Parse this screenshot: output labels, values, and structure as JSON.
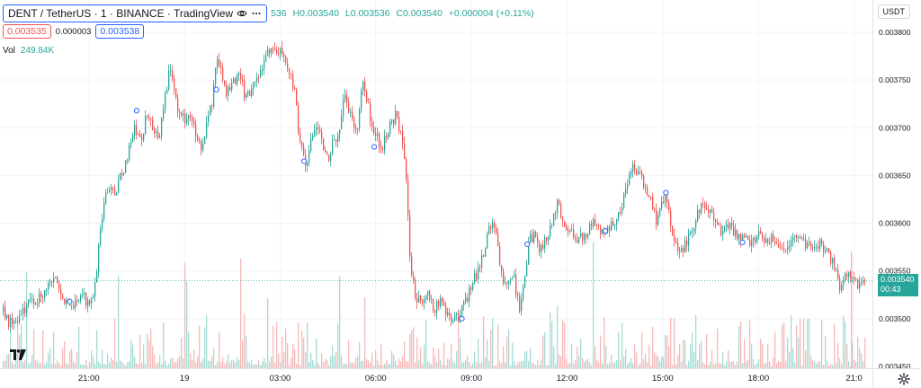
{
  "legend": {
    "symbol": "DENT / TetherUS · 1 · BINANCE · TradingView",
    "ohlc_prefix": "536",
    "open": "H0.003540",
    "low": "L0.003536",
    "close": "C0.003540",
    "change": "+0.000004 (+0.11%)",
    "bid": "0.003535",
    "spread": "0.000003",
    "ask": "0.003538",
    "vol_label": "Vol",
    "vol_value": "249.84K",
    "eye_icon": "eye-icon",
    "close_icon": "close-icon"
  },
  "currency": "USDT",
  "last_price": {
    "price": "0.003540",
    "countdown": "00:43"
  },
  "colors": {
    "up": "#26a69a",
    "down": "#ef5350",
    "volume_up": "#a6dcd5",
    "volume_down": "#f6b9b8",
    "grid": "#f0f3fa",
    "text": "#131722",
    "accent": "#2962ff"
  },
  "chart_data": {
    "type": "candlestick",
    "symbol": "DENT / TetherUS",
    "interval": "1",
    "exchange": "BINANCE",
    "y_ticks": [
      0.0038,
      0.00375,
      0.0037,
      0.00365,
      0.0036,
      0.00355,
      0.0035,
      0.00345
    ],
    "y_tick_labels": [
      "0.003800",
      "0.003750",
      "0.003700",
      "0.003650",
      "0.003600",
      "0.003550",
      "0.003500",
      "0.003450"
    ],
    "ylim": [
      0.00345,
      0.00381
    ],
    "x_ticks": [
      "21:00",
      "19",
      "03:00",
      "06:00",
      "09:00",
      "12:00",
      "15:00",
      "18:00",
      "21:0"
    ],
    "x_tick_hours": [
      3.0,
      6.0,
      9.0,
      12.0,
      15.0,
      18.0,
      21.0,
      24.0,
      27.0
    ],
    "x_range_hours": [
      0.3,
      27.35
    ],
    "price_path": [
      [
        0.3,
        0.003507
      ],
      [
        0.5,
        0.003495
      ],
      [
        0.8,
        0.003502
      ],
      [
        1.0,
        0.003512
      ],
      [
        1.3,
        0.003518
      ],
      [
        1.6,
        0.003528
      ],
      [
        1.9,
        0.003542
      ],
      [
        2.1,
        0.003525
      ],
      [
        2.4,
        0.003514
      ],
      [
        2.7,
        0.003522
      ],
      [
        2.8,
        0.003528
      ],
      [
        3.0,
        0.00351
      ],
      [
        3.2,
        0.003535
      ],
      [
        3.35,
        0.0036
      ],
      [
        3.5,
        0.003625
      ],
      [
        3.6,
        0.00364
      ],
      [
        3.8,
        0.003633
      ],
      [
        4.0,
        0.00365
      ],
      [
        4.2,
        0.003672
      ],
      [
        4.4,
        0.0037
      ],
      [
        4.6,
        0.003685
      ],
      [
        4.8,
        0.003712
      ],
      [
        5.0,
        0.0037
      ],
      [
        5.2,
        0.00369
      ],
      [
        5.35,
        0.003728
      ],
      [
        5.5,
        0.00376
      ],
      [
        5.6,
        0.003748
      ],
      [
        5.75,
        0.003722
      ],
      [
        6.0,
        0.003705
      ],
      [
        6.2,
        0.00371
      ],
      [
        6.4,
        0.003684
      ],
      [
        6.5,
        0.003676
      ],
      [
        6.7,
        0.00371
      ],
      [
        6.85,
        0.003728
      ],
      [
        7.0,
        0.00377
      ],
      [
        7.15,
        0.003755
      ],
      [
        7.3,
        0.003735
      ],
      [
        7.5,
        0.003745
      ],
      [
        7.7,
        0.00376
      ],
      [
        7.9,
        0.00373
      ],
      [
        8.1,
        0.003742
      ],
      [
        8.3,
        0.003752
      ],
      [
        8.5,
        0.00377
      ],
      [
        8.7,
        0.003788
      ],
      [
        8.85,
        0.00378
      ],
      [
        9.0,
        0.003784
      ],
      [
        9.2,
        0.003768
      ],
      [
        9.45,
        0.003735
      ],
      [
        9.55,
        0.0037
      ],
      [
        9.7,
        0.00367
      ],
      [
        9.8,
        0.003652
      ],
      [
        9.9,
        0.00368
      ],
      [
        10.1,
        0.003708
      ],
      [
        10.3,
        0.003685
      ],
      [
        10.5,
        0.003662
      ],
      [
        10.6,
        0.00368
      ],
      [
        10.8,
        0.003695
      ],
      [
        11.0,
        0.00373
      ],
      [
        11.2,
        0.003715
      ],
      [
        11.4,
        0.00369
      ],
      [
        11.5,
        0.003728
      ],
      [
        11.6,
        0.00375
      ],
      [
        11.8,
        0.003712
      ],
      [
        12.0,
        0.00369
      ],
      [
        12.2,
        0.00368
      ],
      [
        12.4,
        0.0037
      ],
      [
        12.6,
        0.003714
      ],
      [
        12.8,
        0.00369
      ],
      [
        12.9,
        0.00366
      ],
      [
        13.0,
        0.00361
      ],
      [
        13.05,
        0.00356
      ],
      [
        13.2,
        0.003525
      ],
      [
        13.4,
        0.003518
      ],
      [
        13.6,
        0.003528
      ],
      [
        13.8,
        0.00351
      ],
      [
        14.0,
        0.00352
      ],
      [
        14.2,
        0.003508
      ],
      [
        14.4,
        0.003498
      ],
      [
        14.6,
        0.003502
      ],
      [
        14.8,
        0.00352
      ],
      [
        15.0,
        0.003535
      ],
      [
        15.2,
        0.003552
      ],
      [
        15.4,
        0.003575
      ],
      [
        15.6,
        0.003602
      ],
      [
        15.75,
        0.003592
      ],
      [
        15.95,
        0.00354
      ],
      [
        16.1,
        0.003535
      ],
      [
        16.3,
        0.003545
      ],
      [
        16.5,
        0.003505
      ],
      [
        16.65,
        0.00354
      ],
      [
        16.8,
        0.003582
      ],
      [
        17.0,
        0.00359
      ],
      [
        17.15,
        0.00357
      ],
      [
        17.3,
        0.003585
      ],
      [
        17.5,
        0.003598
      ],
      [
        17.7,
        0.003622
      ],
      [
        17.9,
        0.003598
      ],
      [
        18.1,
        0.00359
      ],
      [
        18.3,
        0.00358
      ],
      [
        18.5,
        0.003588
      ],
      [
        18.7,
        0.003595
      ],
      [
        18.9,
        0.003602
      ],
      [
        19.1,
        0.00359
      ],
      [
        19.3,
        0.003598
      ],
      [
        19.5,
        0.003605
      ],
      [
        19.7,
        0.00362
      ],
      [
        19.9,
        0.00364
      ],
      [
        20.05,
        0.003665
      ],
      [
        20.25,
        0.00365
      ],
      [
        20.45,
        0.00364
      ],
      [
        20.65,
        0.00362
      ],
      [
        20.8,
        0.0036
      ],
      [
        20.95,
        0.003618
      ],
      [
        21.05,
        0.003628
      ],
      [
        21.25,
        0.003598
      ],
      [
        21.4,
        0.003575
      ],
      [
        21.6,
        0.003572
      ],
      [
        21.8,
        0.003585
      ],
      [
        22.0,
        0.0036
      ],
      [
        22.2,
        0.003622
      ],
      [
        22.4,
        0.003615
      ],
      [
        22.6,
        0.0036
      ],
      [
        22.8,
        0.00359
      ],
      [
        23.0,
        0.003598
      ],
      [
        23.2,
        0.003592
      ],
      [
        23.4,
        0.003585
      ],
      [
        23.6,
        0.003582
      ],
      [
        23.8,
        0.003578
      ],
      [
        24.0,
        0.003588
      ],
      [
        24.2,
        0.003582
      ],
      [
        24.4,
        0.003586
      ],
      [
        24.6,
        0.00358
      ],
      [
        24.8,
        0.003575
      ],
      [
        25.0,
        0.003583
      ],
      [
        25.2,
        0.003585
      ],
      [
        25.5,
        0.003578
      ],
      [
        25.8,
        0.00358
      ],
      [
        26.0,
        0.003575
      ],
      [
        26.2,
        0.003565
      ],
      [
        26.4,
        0.003555
      ],
      [
        26.55,
        0.00353
      ],
      [
        26.7,
        0.003548
      ],
      [
        26.9,
        0.003542
      ],
      [
        27.1,
        0.003535
      ],
      [
        27.3,
        0.00354
      ]
    ],
    "markers": [
      [
        2.4,
        0.003518
      ],
      [
        4.5,
        0.003718
      ],
      [
        7.0,
        0.00374
      ],
      [
        9.75,
        0.003665
      ],
      [
        11.95,
        0.00368
      ],
      [
        14.7,
        0.0035
      ],
      [
        16.75,
        0.003578
      ],
      [
        19.2,
        0.003592
      ],
      [
        21.1,
        0.003632
      ],
      [
        23.5,
        0.00358
      ]
    ],
    "last_price": 0.00354
  }
}
